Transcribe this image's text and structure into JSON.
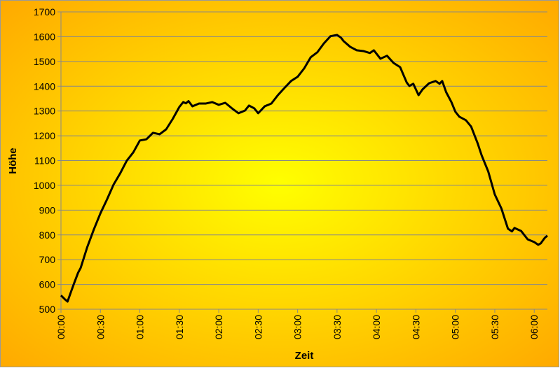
{
  "chart_data": {
    "type": "line",
    "x_label": "Zeit",
    "y_label": "Höhe",
    "x": [
      0,
      3,
      5,
      8,
      10,
      13,
      15,
      20,
      25,
      30,
      35,
      40,
      45,
      50,
      55,
      60,
      65,
      70,
      75,
      80,
      85,
      90,
      93,
      95,
      97,
      100,
      105,
      110,
      115,
      120,
      125,
      130,
      135,
      140,
      143,
      147,
      150,
      155,
      160,
      165,
      170,
      175,
      180,
      185,
      190,
      195,
      200,
      205,
      210,
      213,
      215,
      220,
      225,
      230,
      235,
      238,
      243,
      248,
      253,
      258,
      263,
      265,
      268,
      272,
      275,
      280,
      285,
      288,
      290,
      293,
      297,
      300,
      303,
      308,
      312,
      317,
      320,
      325,
      330,
      335,
      340,
      343,
      345,
      350,
      355,
      360,
      363,
      365,
      368,
      370
    ],
    "series": [
      {
        "name": "Höhe",
        "color": "#000000",
        "values": [
          556,
          540,
          531,
          576,
          605,
          647,
          667,
          751,
          822,
          887,
          943,
          1003,
          1048,
          1099,
          1133,
          1181,
          1186,
          1212,
          1206,
          1226,
          1268,
          1316,
          1336,
          1331,
          1340,
          1319,
          1330,
          1330,
          1336,
          1325,
          1333,
          1311,
          1291,
          1302,
          1322,
          1311,
          1291,
          1319,
          1330,
          1364,
          1393,
          1421,
          1438,
          1472,
          1517,
          1537,
          1573,
          1602,
          1607,
          1596,
          1582,
          1559,
          1545,
          1542,
          1534,
          1545,
          1511,
          1523,
          1494,
          1477,
          1415,
          1401,
          1410,
          1364,
          1387,
          1412,
          1421,
          1410,
          1421,
          1376,
          1336,
          1297,
          1277,
          1263,
          1237,
          1169,
          1121,
          1056,
          963,
          907,
          825,
          814,
          828,
          816,
          782,
          771,
          760,
          766,
          788,
          797
        ]
      }
    ],
    "xlim": [
      0,
      370
    ],
    "xticks": [
      {
        "value": 0,
        "label": "00:00"
      },
      {
        "value": 30,
        "label": "00:30"
      },
      {
        "value": 60,
        "label": "01:00"
      },
      {
        "value": 90,
        "label": "01:30"
      },
      {
        "value": 120,
        "label": "02:00"
      },
      {
        "value": 150,
        "label": "02:30"
      },
      {
        "value": 180,
        "label": "03:00"
      },
      {
        "value": 210,
        "label": "03:30"
      },
      {
        "value": 240,
        "label": "04:00"
      },
      {
        "value": 270,
        "label": "04:30"
      },
      {
        "value": 300,
        "label": "05:00"
      },
      {
        "value": 330,
        "label": "05:30"
      },
      {
        "value": 360,
        "label": "06:00"
      }
    ],
    "ylim": [
      500,
      1700
    ],
    "yticks": [
      500,
      600,
      700,
      800,
      900,
      1000,
      1100,
      1200,
      1300,
      1400,
      1500,
      1600,
      1700
    ],
    "grid": true
  }
}
